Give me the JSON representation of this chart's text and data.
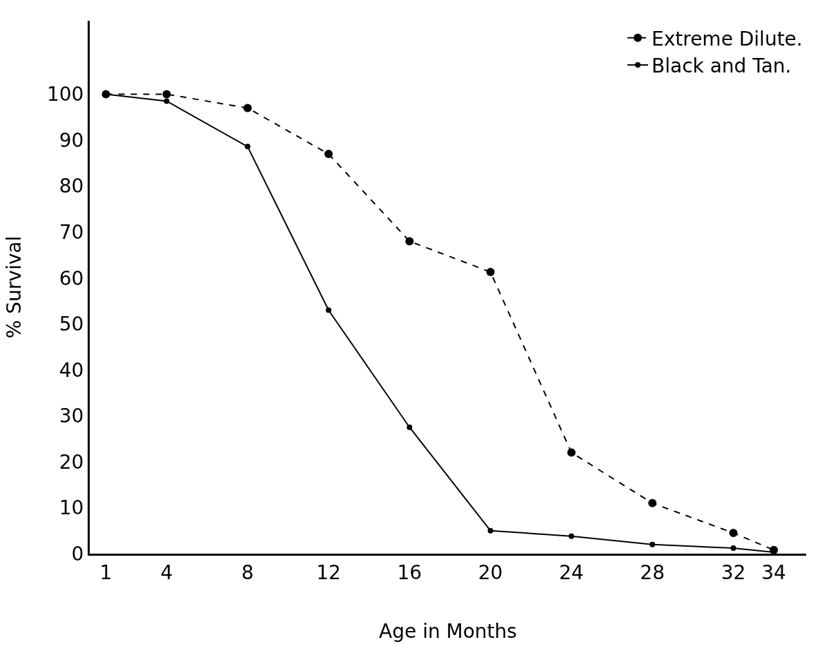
{
  "chart_data": {
    "type": "line",
    "xlabel": "Age in Months",
    "ylabel": "% Survival",
    "xlim": [
      0.2,
      35.6
    ],
    "xticks": [
      1,
      4,
      8,
      12,
      16,
      20,
      24,
      28,
      32,
      34
    ],
    "ylim": [
      0,
      116
    ],
    "yticks": [
      0,
      10,
      20,
      30,
      40,
      50,
      60,
      70,
      80,
      90,
      100
    ],
    "grid": false,
    "legend": "top right",
    "marker": "circle",
    "series": [
      {
        "name": "Black and Tan.",
        "color": "#000000",
        "line_style": "solid",
        "x": [
          1,
          4,
          8,
          12,
          16,
          20,
          24,
          28,
          32,
          34
        ],
        "values": [
          100,
          98.5,
          88.6,
          53,
          27.5,
          5,
          3.8,
          2,
          1.2,
          0.3
        ]
      },
      {
        "name": "Extreme Dilute.",
        "color": "#000000",
        "line_style": "dashed",
        "x": [
          1,
          4,
          8,
          12,
          16,
          20,
          24,
          28,
          32,
          34
        ],
        "values": [
          100,
          100,
          97,
          87,
          68,
          61.3,
          22,
          11,
          4.5,
          0.8
        ]
      }
    ]
  }
}
